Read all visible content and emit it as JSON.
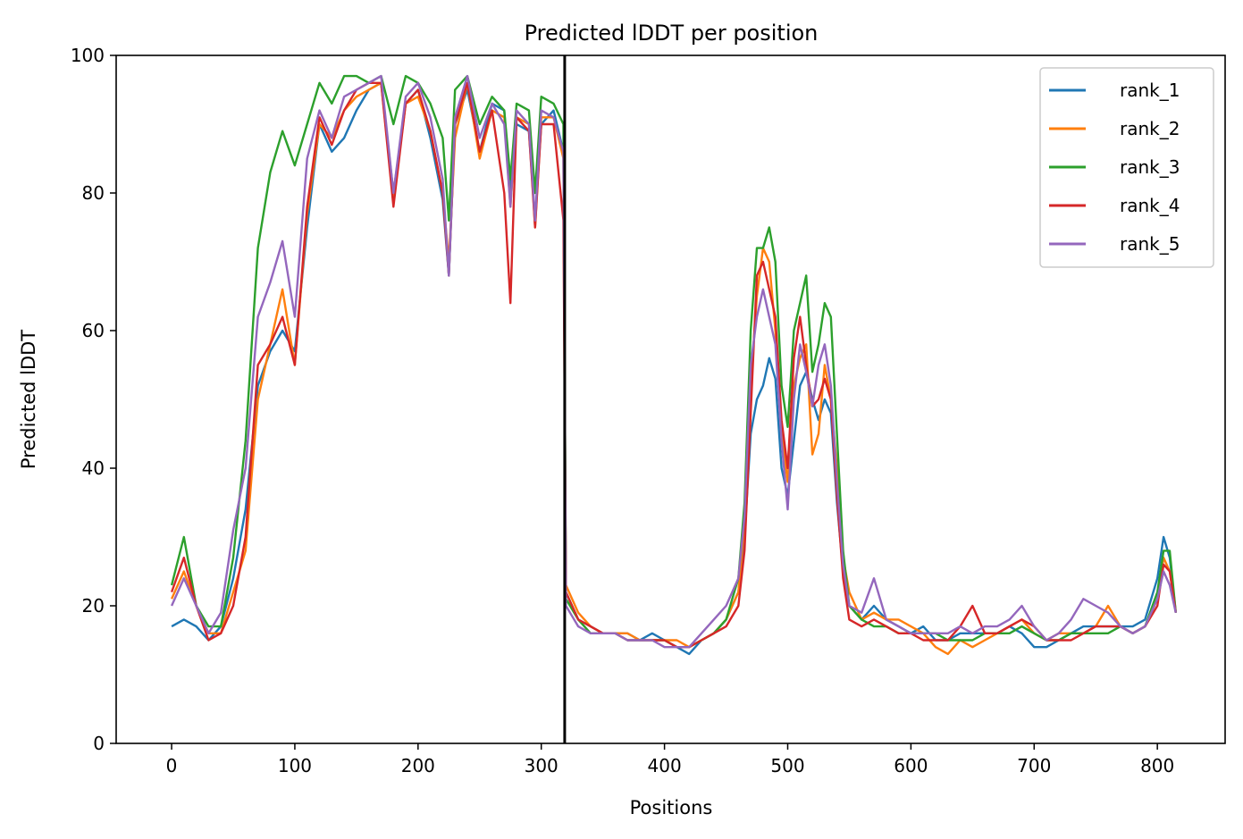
{
  "chart_data": {
    "type": "line",
    "title": "Predicted lDDT per position",
    "xlabel": "Positions",
    "ylabel": "Predicted lDDT",
    "xlim": [
      -45,
      855
    ],
    "ylim": [
      0,
      100
    ],
    "xticks": [
      0,
      100,
      200,
      300,
      400,
      500,
      600,
      700,
      800
    ],
    "yticks": [
      0,
      20,
      40,
      60,
      80,
      100
    ],
    "grid": false,
    "legend_position": "top-right",
    "boundary_line": {
      "x": 319,
      "color": "#000000"
    },
    "series": [
      {
        "name": "rank_1",
        "color": "#1f77b4",
        "x": [
          0,
          10,
          20,
          30,
          40,
          50,
          60,
          70,
          80,
          90,
          100,
          110,
          120,
          130,
          140,
          150,
          160,
          170,
          180,
          190,
          200,
          210,
          220,
          225,
          230,
          240,
          250,
          260,
          270,
          275,
          280,
          290,
          295,
          300,
          310,
          318,
          320,
          330,
          340,
          350,
          360,
          370,
          380,
          390,
          400,
          410,
          420,
          430,
          440,
          450,
          460,
          465,
          470,
          475,
          480,
          485,
          490,
          495,
          500,
          505,
          510,
          515,
          520,
          525,
          530,
          535,
          540,
          545,
          550,
          560,
          570,
          580,
          590,
          600,
          610,
          620,
          630,
          640,
          650,
          660,
          670,
          680,
          690,
          700,
          710,
          720,
          730,
          740,
          750,
          760,
          770,
          780,
          790,
          800,
          805,
          810,
          815
        ],
        "y": [
          17,
          18,
          17,
          15,
          17,
          24,
          34,
          52,
          57,
          60,
          57,
          75,
          90,
          86,
          88,
          92,
          95,
          96,
          80,
          93,
          95,
          88,
          79,
          68,
          90,
          95,
          86,
          93,
          92,
          80,
          90,
          89,
          76,
          90,
          92,
          86,
          22,
          18,
          17,
          16,
          16,
          16,
          15,
          16,
          15,
          14,
          13,
          15,
          16,
          18,
          22,
          30,
          45,
          50,
          52,
          56,
          53,
          40,
          36,
          44,
          52,
          54,
          50,
          47,
          50,
          48,
          35,
          25,
          20,
          18,
          20,
          18,
          17,
          16,
          17,
          15,
          15,
          16,
          16,
          16,
          16,
          17,
          16,
          14,
          14,
          15,
          16,
          17,
          17,
          17,
          17,
          17,
          18,
          24,
          30,
          27,
          19
        ]
      },
      {
        "name": "rank_2",
        "color": "#ff7f0e",
        "x": [
          0,
          10,
          20,
          30,
          40,
          50,
          60,
          70,
          80,
          90,
          100,
          110,
          120,
          130,
          140,
          150,
          160,
          170,
          180,
          190,
          200,
          210,
          220,
          225,
          230,
          240,
          250,
          260,
          270,
          275,
          280,
          290,
          295,
          300,
          310,
          318,
          320,
          330,
          340,
          350,
          360,
          370,
          380,
          390,
          400,
          410,
          420,
          430,
          440,
          450,
          460,
          465,
          470,
          475,
          480,
          485,
          490,
          495,
          500,
          505,
          510,
          515,
          520,
          525,
          530,
          535,
          540,
          545,
          550,
          560,
          570,
          580,
          590,
          600,
          610,
          620,
          630,
          640,
          650,
          660,
          670,
          680,
          690,
          700,
          710,
          720,
          730,
          740,
          750,
          760,
          770,
          780,
          790,
          800,
          805,
          810,
          815
        ],
        "y": [
          21,
          25,
          20,
          16,
          16,
          22,
          28,
          50,
          58,
          66,
          55,
          77,
          90,
          88,
          92,
          94,
          95,
          96,
          79,
          93,
          94,
          89,
          80,
          70,
          88,
          96,
          85,
          92,
          91,
          78,
          91,
          90,
          75,
          91,
          91,
          85,
          23,
          19,
          17,
          16,
          16,
          16,
          15,
          15,
          15,
          15,
          14,
          15,
          16,
          18,
          22,
          32,
          52,
          65,
          72,
          70,
          60,
          45,
          38,
          52,
          56,
          58,
          42,
          45,
          55,
          50,
          40,
          27,
          22,
          18,
          19,
          18,
          18,
          17,
          16,
          14,
          13,
          15,
          14,
          15,
          16,
          17,
          18,
          16,
          15,
          16,
          16,
          16,
          17,
          20,
          17,
          16,
          17,
          21,
          27,
          25,
          19
        ]
      },
      {
        "name": "rank_3",
        "color": "#2ca02c",
        "x": [
          0,
          10,
          20,
          30,
          40,
          50,
          60,
          70,
          80,
          90,
          100,
          110,
          120,
          130,
          140,
          150,
          160,
          170,
          180,
          190,
          200,
          210,
          220,
          225,
          230,
          240,
          250,
          260,
          270,
          275,
          280,
          290,
          295,
          300,
          310,
          318,
          320,
          330,
          340,
          350,
          360,
          370,
          380,
          390,
          400,
          410,
          420,
          430,
          440,
          450,
          460,
          465,
          470,
          475,
          480,
          485,
          490,
          495,
          500,
          505,
          510,
          515,
          520,
          525,
          530,
          535,
          540,
          545,
          550,
          560,
          570,
          580,
          590,
          600,
          610,
          620,
          630,
          640,
          650,
          660,
          670,
          680,
          690,
          700,
          710,
          720,
          730,
          740,
          750,
          760,
          770,
          780,
          790,
          800,
          805,
          810,
          815
        ],
        "y": [
          23,
          30,
          20,
          17,
          17,
          27,
          44,
          72,
          83,
          89,
          84,
          90,
          96,
          93,
          97,
          97,
          96,
          97,
          90,
          97,
          96,
          93,
          88,
          76,
          95,
          97,
          90,
          94,
          92,
          82,
          93,
          92,
          80,
          94,
          93,
          90,
          21,
          18,
          16,
          16,
          16,
          15,
          15,
          15,
          15,
          14,
          14,
          15,
          16,
          18,
          24,
          35,
          60,
          72,
          72,
          75,
          70,
          52,
          46,
          60,
          64,
          68,
          54,
          58,
          64,
          62,
          45,
          28,
          20,
          18,
          17,
          17,
          16,
          16,
          16,
          16,
          15,
          15,
          15,
          16,
          16,
          16,
          17,
          16,
          15,
          15,
          16,
          16,
          16,
          16,
          17,
          16,
          17,
          22,
          28,
          28,
          19
        ]
      },
      {
        "name": "rank_4",
        "color": "#d62728",
        "x": [
          0,
          10,
          20,
          30,
          40,
          50,
          60,
          70,
          80,
          90,
          100,
          110,
          120,
          130,
          140,
          150,
          160,
          170,
          180,
          190,
          200,
          210,
          220,
          225,
          230,
          240,
          250,
          260,
          270,
          275,
          280,
          290,
          295,
          300,
          310,
          318,
          320,
          330,
          340,
          350,
          360,
          370,
          380,
          390,
          400,
          410,
          420,
          430,
          440,
          450,
          460,
          465,
          470,
          475,
          480,
          485,
          490,
          495,
          500,
          505,
          510,
          515,
          520,
          525,
          530,
          535,
          540,
          545,
          550,
          560,
          570,
          580,
          590,
          600,
          610,
          620,
          630,
          640,
          650,
          660,
          670,
          680,
          690,
          700,
          710,
          720,
          730,
          740,
          750,
          760,
          770,
          780,
          790,
          800,
          805,
          810,
          815
        ],
        "y": [
          22,
          27,
          20,
          15,
          16,
          20,
          30,
          55,
          58,
          62,
          55,
          78,
          91,
          87,
          92,
          95,
          96,
          96,
          78,
          93,
          95,
          89,
          80,
          68,
          90,
          96,
          86,
          92,
          80,
          64,
          91,
          89,
          75,
          90,
          90,
          76,
          22,
          18,
          17,
          16,
          16,
          15,
          15,
          15,
          15,
          14,
          14,
          15,
          16,
          17,
          20,
          28,
          48,
          68,
          70,
          66,
          62,
          47,
          40,
          56,
          62,
          55,
          49,
          50,
          53,
          50,
          36,
          24,
          18,
          17,
          18,
          17,
          16,
          16,
          15,
          15,
          15,
          17,
          20,
          16,
          16,
          17,
          18,
          17,
          15,
          15,
          15,
          16,
          17,
          17,
          17,
          16,
          17,
          20,
          26,
          25,
          19
        ]
      },
      {
        "name": "rank_5",
        "color": "#9467bd",
        "x": [
          0,
          10,
          20,
          30,
          40,
          50,
          60,
          70,
          80,
          90,
          100,
          110,
          120,
          130,
          140,
          150,
          160,
          170,
          180,
          190,
          200,
          210,
          220,
          225,
          230,
          240,
          250,
          260,
          270,
          275,
          280,
          290,
          295,
          300,
          310,
          318,
          320,
          330,
          340,
          350,
          360,
          370,
          380,
          390,
          400,
          410,
          420,
          430,
          440,
          450,
          460,
          465,
          470,
          475,
          480,
          485,
          490,
          495,
          500,
          505,
          510,
          515,
          520,
          525,
          530,
          535,
          540,
          545,
          550,
          560,
          570,
          580,
          590,
          600,
          610,
          620,
          630,
          640,
          650,
          660,
          670,
          680,
          690,
          700,
          710,
          720,
          730,
          740,
          750,
          760,
          770,
          780,
          790,
          800,
          805,
          810,
          815
        ],
        "y": [
          20,
          24,
          20,
          16,
          19,
          31,
          40,
          62,
          67,
          73,
          62,
          85,
          92,
          88,
          94,
          95,
          96,
          97,
          80,
          94,
          96,
          91,
          82,
          68,
          91,
          97,
          88,
          93,
          90,
          78,
          92,
          90,
          76,
          92,
          91,
          86,
          20,
          17,
          16,
          16,
          16,
          15,
          15,
          15,
          14,
          14,
          14,
          16,
          18,
          20,
          24,
          33,
          55,
          62,
          66,
          62,
          58,
          44,
          34,
          50,
          58,
          54,
          49,
          55,
          58,
          52,
          38,
          26,
          20,
          19,
          24,
          18,
          17,
          16,
          16,
          16,
          16,
          17,
          16,
          17,
          17,
          18,
          20,
          17,
          15,
          16,
          18,
          21,
          20,
          19,
          17,
          16,
          17,
          21,
          25,
          23,
          19
        ]
      }
    ]
  }
}
